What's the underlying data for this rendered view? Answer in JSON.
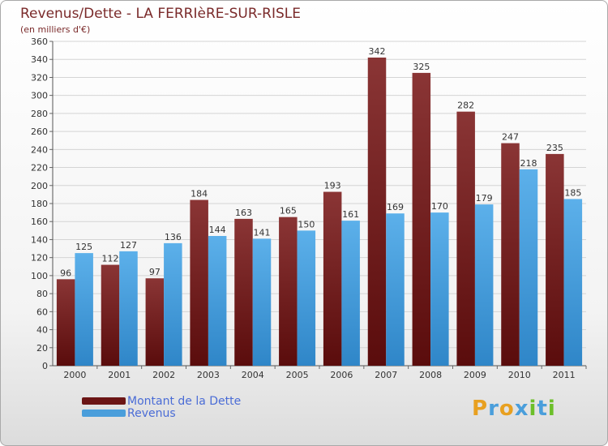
{
  "title": "Revenus/Dette - LA FERRIèRE-SUR-RISLE",
  "subtitle": "(en milliers d'€)",
  "colors": {
    "dette": "#6b1515",
    "revenus": "#4a9edb",
    "axis_text": "#333333"
  },
  "legend": [
    {
      "label": "Montant de la Dette",
      "color": "#6b1515"
    },
    {
      "label": "Revenus",
      "color": "#4a9edb"
    }
  ],
  "logo": {
    "text": "Proxiti",
    "letters": [
      "P",
      "r",
      "o",
      "x",
      "i",
      "t",
      "i"
    ],
    "colors": [
      "#e8a020",
      "#4a9edb",
      "#e8a020",
      "#4a9edb",
      "#6cbf2a",
      "#4a9edb",
      "#6cbf2a"
    ]
  },
  "chart_data": {
    "type": "bar",
    "categories": [
      "2000",
      "2001",
      "2002",
      "2003",
      "2004",
      "2005",
      "2006",
      "2007",
      "2008",
      "2009",
      "2010",
      "2011"
    ],
    "series": [
      {
        "name": "Montant de la Dette",
        "values": [
          96,
          112,
          97,
          184,
          163,
          165,
          193,
          342,
          325,
          282,
          247,
          235
        ]
      },
      {
        "name": "Revenus",
        "values": [
          125,
          127,
          136,
          144,
          141,
          150,
          161,
          169,
          170,
          179,
          218,
          185
        ]
      }
    ],
    "ylim": [
      0,
      360
    ],
    "ytick_step": 20,
    "grid": true,
    "legend_position": "bottom-left"
  }
}
